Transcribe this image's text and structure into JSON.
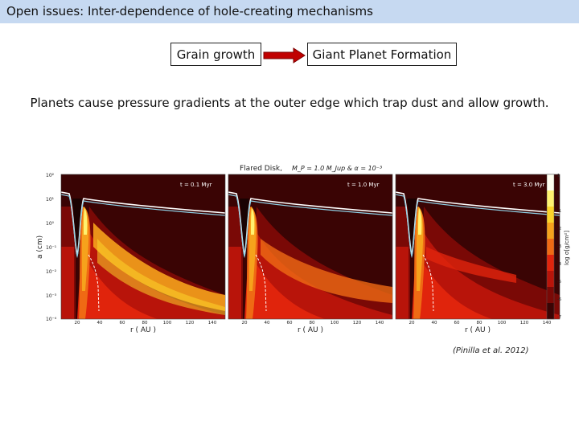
{
  "slide": {
    "title": "Open issues: Inter-dependence of hole-creating mechanisms",
    "flow": {
      "from_label": "Grain growth",
      "to_label": "Giant Planet Formation",
      "arrow_color": "#c00000"
    },
    "statement": "Planets cause pressure gradients at the outer edge which trap dust and allow growth.",
    "figure": {
      "heading": "Flared Disk,",
      "heading_params": "M_P = 1.0 M_Jup & α = 10⁻³",
      "panels": [
        {
          "time_label": "t = 0.1 Myr"
        },
        {
          "time_label": "t = 1.0 Myr"
        },
        {
          "time_label": "t = 3.0 Myr"
        }
      ],
      "ylabel": "a (cm)",
      "xlabel": "r ( AU )",
      "y_ticks": [
        "10²",
        "10¹",
        "10⁰",
        "10⁻¹",
        "10⁻²",
        "10⁻³",
        "10⁻⁴"
      ],
      "x_ticks": [
        "20",
        "40",
        "60",
        "80",
        "100",
        "120",
        "140"
      ],
      "colorbar_label": "log σ[g/cm²]",
      "colorbar_ticks": [
        "1",
        "0",
        "-1",
        "-2",
        "-3",
        "-4",
        "-5",
        "-6",
        "-7"
      ],
      "colormap": [
        "#fffff0",
        "#fff170",
        "#fbd32a",
        "#f6a21c",
        "#ef6a14",
        "#e0240c",
        "#b8140a",
        "#7a0906",
        "#3a0404"
      ]
    },
    "citation": "(Pinilla et al. 2012)"
  }
}
